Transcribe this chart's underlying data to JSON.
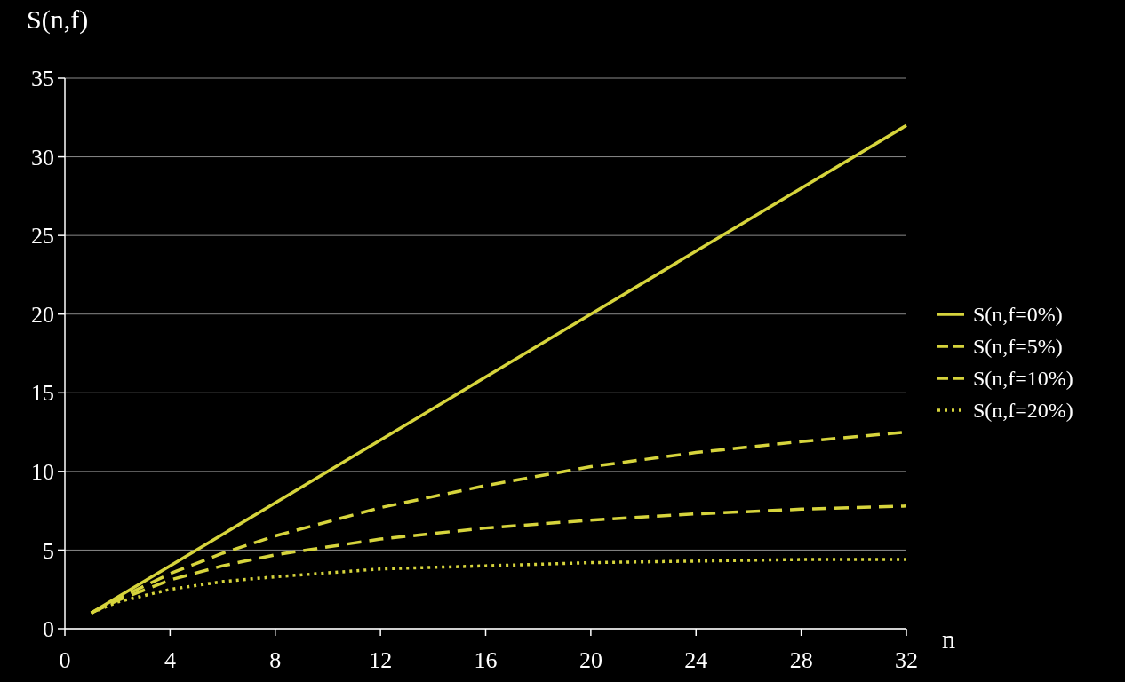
{
  "chart_data": {
    "type": "line",
    "xlabel": "n",
    "ylabel": "S(n,f)",
    "x": [
      1,
      2,
      4,
      6,
      8,
      12,
      16,
      20,
      24,
      28,
      32
    ],
    "xlim": [
      0,
      32
    ],
    "xticks": [
      0,
      4,
      8,
      12,
      16,
      20,
      24,
      28,
      32
    ],
    "ylim": [
      0,
      35
    ],
    "yticks": [
      0,
      5,
      10,
      15,
      20,
      25,
      30,
      35
    ],
    "grid": "y",
    "legend": "right",
    "series": [
      {
        "name": "S(n,f=0%)",
        "color": "#d6d43c",
        "line_style": "solid",
        "values": [
          1,
          2,
          4,
          6,
          8,
          12,
          16,
          20,
          24,
          28,
          32
        ]
      },
      {
        "name": "S(n,f=5%)",
        "color": "#d6d43c",
        "line_style": "dashed",
        "values": [
          1,
          1.9,
          3.5,
          4.8,
          5.9,
          7.7,
          9.1,
          10.3,
          11.2,
          11.9,
          12.5
        ]
      },
      {
        "name": "S(n,f=10%)",
        "color": "#d6d43c",
        "line_style": "dashed",
        "values": [
          1,
          1.8,
          3.1,
          4,
          4.7,
          5.7,
          6.4,
          6.9,
          7.3,
          7.6,
          7.8
        ]
      },
      {
        "name": "S(n,f=20%)",
        "color": "#d6d43c",
        "line_style": "dotted",
        "values": [
          1,
          1.7,
          2.5,
          3,
          3.3,
          3.8,
          4,
          4.2,
          4.3,
          4.4,
          4.4
        ]
      }
    ]
  }
}
